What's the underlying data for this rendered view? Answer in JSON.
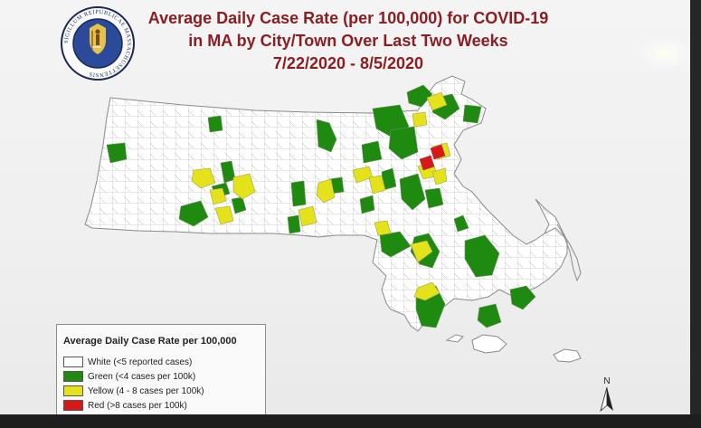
{
  "seal": {
    "ring_text": "SIGILLUM REIPUBLICAE MASSACHUSETTENSIS"
  },
  "title": {
    "line1": "Average Daily Case Rate (per 100,000) for COVID-19",
    "line2": "in MA by City/Town Over Last Two Weeks",
    "line3": "7/22/2020 - 8/5/2020"
  },
  "legend": {
    "title": "Average Daily Case Rate per 100,000",
    "items": [
      {
        "label": "White (<5 reported cases)",
        "color": "#ffffff"
      },
      {
        "label": "Green (<4 cases per 100k)",
        "color": "#1e8a10"
      },
      {
        "label": "Yellow (4 - 8 cases per 100k)",
        "color": "#e4e21a"
      },
      {
        "label": "Red (>8 cases per 100k)",
        "color": "#d81818"
      }
    ]
  },
  "compass": {
    "label": "N"
  },
  "colors": {
    "title": "#8b1e22",
    "outline": "#888888",
    "white": "#ffffff",
    "green": "#1e8a10",
    "yellow": "#e4e21a",
    "red": "#d81818"
  }
}
